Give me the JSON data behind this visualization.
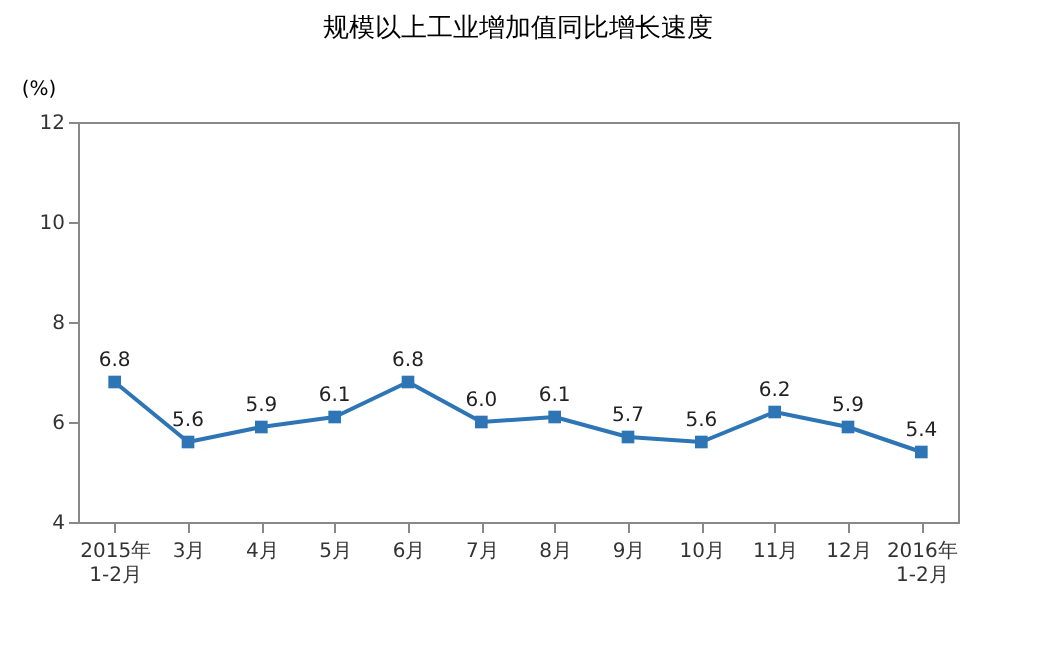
{
  "chart_data": {
    "type": "line",
    "title": "规模以上工业增加值同比增长速度",
    "ylabel": "(%)",
    "categories": [
      "2015年\n1-2月",
      "3月",
      "4月",
      "5月",
      "6月",
      "7月",
      "8月",
      "9月",
      "10月",
      "11月",
      "12月",
      "2016年\n1-2月"
    ],
    "series": [
      {
        "color": "#2e75b6",
        "values": [
          6.8,
          5.6,
          5.9,
          6.1,
          6.8,
          6.0,
          6.1,
          5.7,
          5.6,
          6.2,
          5.9,
          5.4
        ],
        "value_labels": [
          "6.8",
          "5.6",
          "5.9",
          "6.1",
          "6.8",
          "6.0",
          "6.1",
          "5.7",
          "5.6",
          "6.2",
          "5.9",
          "5.4"
        ]
      }
    ],
    "ylim": [
      4,
      12
    ],
    "yticks": [
      4,
      6,
      8,
      10,
      12
    ],
    "marker": "square",
    "line_style": "solid"
  }
}
